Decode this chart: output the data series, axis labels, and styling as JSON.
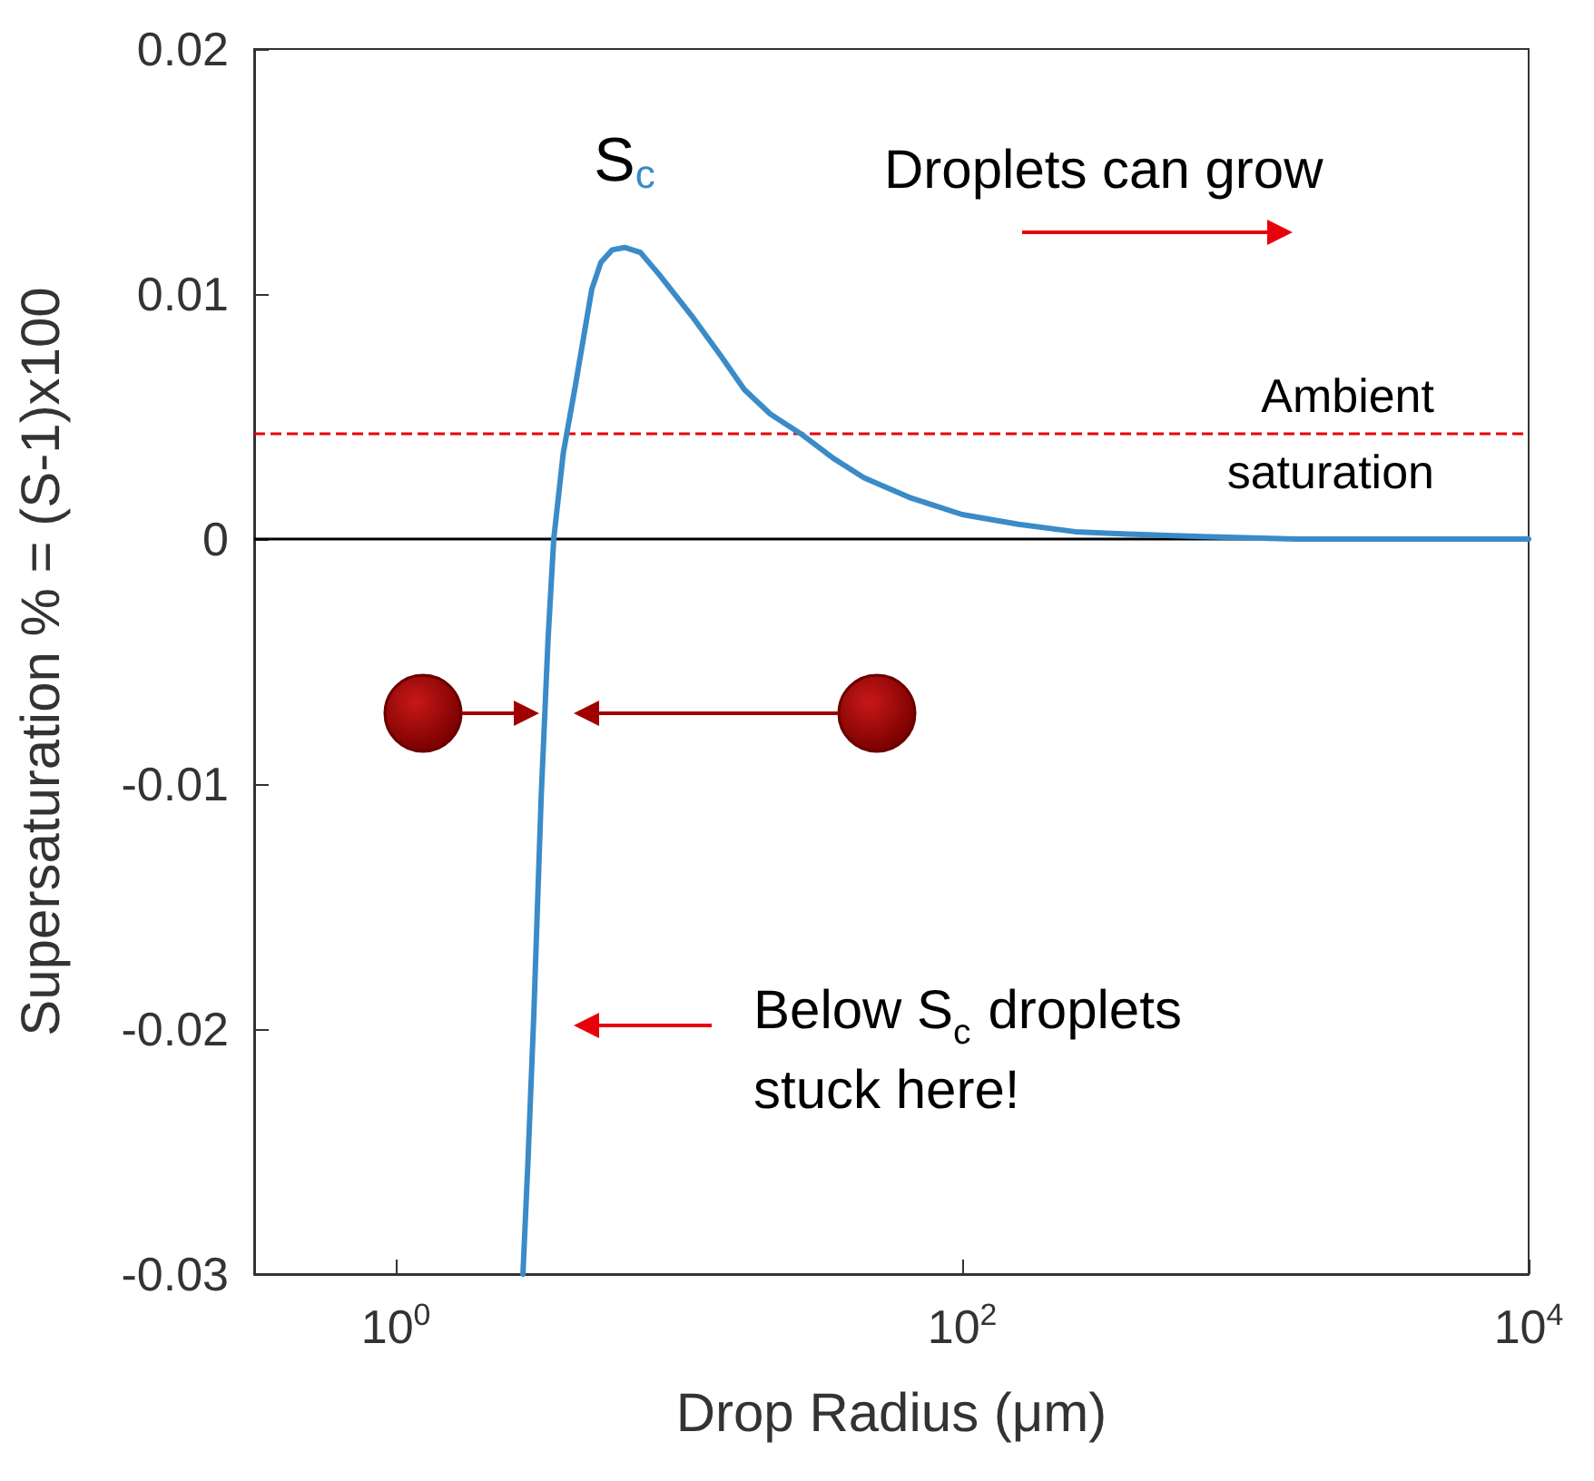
{
  "chart_data": {
    "type": "line",
    "xlabel": "Drop Radius (μm)",
    "ylabel": "Supersaturation % = (S-1)x100",
    "log": "x",
    "xlim": [
      0.316,
      10000
    ],
    "xticks": [
      {
        "value": 1,
        "label": "10$^{0}$"
      },
      {
        "value": 100,
        "label": "10$^{2}$"
      },
      {
        "value": 10000,
        "label": "10$^{4}$"
      }
    ],
    "ylim": [
      -0.03,
      0.02
    ],
    "yticks": [
      -0.03,
      -0.02,
      -0.01,
      0,
      0.01,
      0.02
    ],
    "grid": false,
    "marker": "none",
    "line_style": "solid",
    "series": [
      {
        "color": "#3a8bc8",
        "x": [
          2.81,
          2.93,
          3.07,
          3.26,
          3.45,
          3.61,
          3.9,
          4.31,
          4.92,
          5.3,
          5.8,
          6.42,
          7.3,
          8.5,
          11.1,
          14,
          17,
          21,
          26.9,
          35,
          45,
          65,
          100,
          158,
          250,
          382,
          700,
          1500,
          10000
        ],
        "values": [
          -0.03,
          -0.0253,
          -0.0194,
          -0.0105,
          -0.004,
          0,
          0.0035,
          0.0063,
          0.0102,
          0.0113,
          0.0118,
          0.0119,
          0.0117,
          0.0108,
          0.0091,
          0.0075,
          0.0061,
          0.0051,
          0.0043,
          0.0033,
          0.0025,
          0.0017,
          0.001,
          0.0006,
          0.0003,
          0.0002,
          0.0001,
          0,
          0
        ]
      }
    ],
    "ref_lines": [
      {
        "axis": "y",
        "value": 0,
        "color": "#000000",
        "line_style": "solid"
      },
      {
        "axis": "y",
        "value": 0.0043,
        "label": "Ambient saturation",
        "color": "#e8000b",
        "line_style": "dashed"
      }
    ],
    "annotations": [
      {
        "text": "S$_{c}$",
        "x": 6.42,
        "y": 0.0119
      },
      "Droplets can grow",
      "Below S$_{c}$ droplets stuck here!"
    ]
  }
}
